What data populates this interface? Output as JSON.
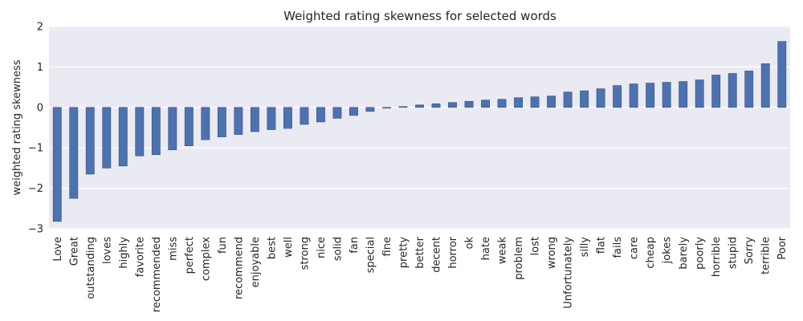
{
  "chart_data": {
    "type": "bar",
    "title": "Weighted rating skewness for selected words",
    "xlabel": "",
    "ylabel": "weighted rating skewness",
    "ylim": [
      -3,
      2
    ],
    "yticks": [
      "−3",
      "−2",
      "−1",
      "0",
      "1",
      "2"
    ],
    "grid": true,
    "bar_color": "#4c72b0",
    "background_color": "#eaeaf2",
    "categories": [
      "Love",
      "Great",
      "outstanding",
      "loves",
      "highly",
      "favorite",
      "recommended",
      "miss",
      "perfect",
      "complex",
      "fun",
      "recommend",
      "enjoyable",
      "best",
      "well",
      "strong",
      "nice",
      "solid",
      "fan",
      "special",
      "fine",
      "pretty",
      "better",
      "decent",
      "horror",
      "ok",
      "hate",
      "weak",
      "problem",
      "lost",
      "wrong",
      "Unfortunately",
      "silly",
      "flat",
      "fails",
      "care",
      "cheap",
      "jokes",
      "barely",
      "poorly",
      "horrible",
      "stupid",
      "Sorry",
      "terrible",
      "Poor"
    ],
    "values": [
      -2.82,
      -2.25,
      -1.65,
      -1.5,
      -1.45,
      -1.2,
      -1.17,
      -1.05,
      -0.95,
      -0.8,
      -0.73,
      -0.67,
      -0.6,
      -0.55,
      -0.52,
      -0.42,
      -0.36,
      -0.27,
      -0.2,
      -0.1,
      -0.02,
      0.02,
      0.06,
      0.09,
      0.12,
      0.15,
      0.18,
      0.2,
      0.24,
      0.26,
      0.28,
      0.38,
      0.41,
      0.46,
      0.54,
      0.58,
      0.6,
      0.62,
      0.64,
      0.68,
      0.8,
      0.84,
      0.9,
      1.08,
      1.63
    ]
  }
}
